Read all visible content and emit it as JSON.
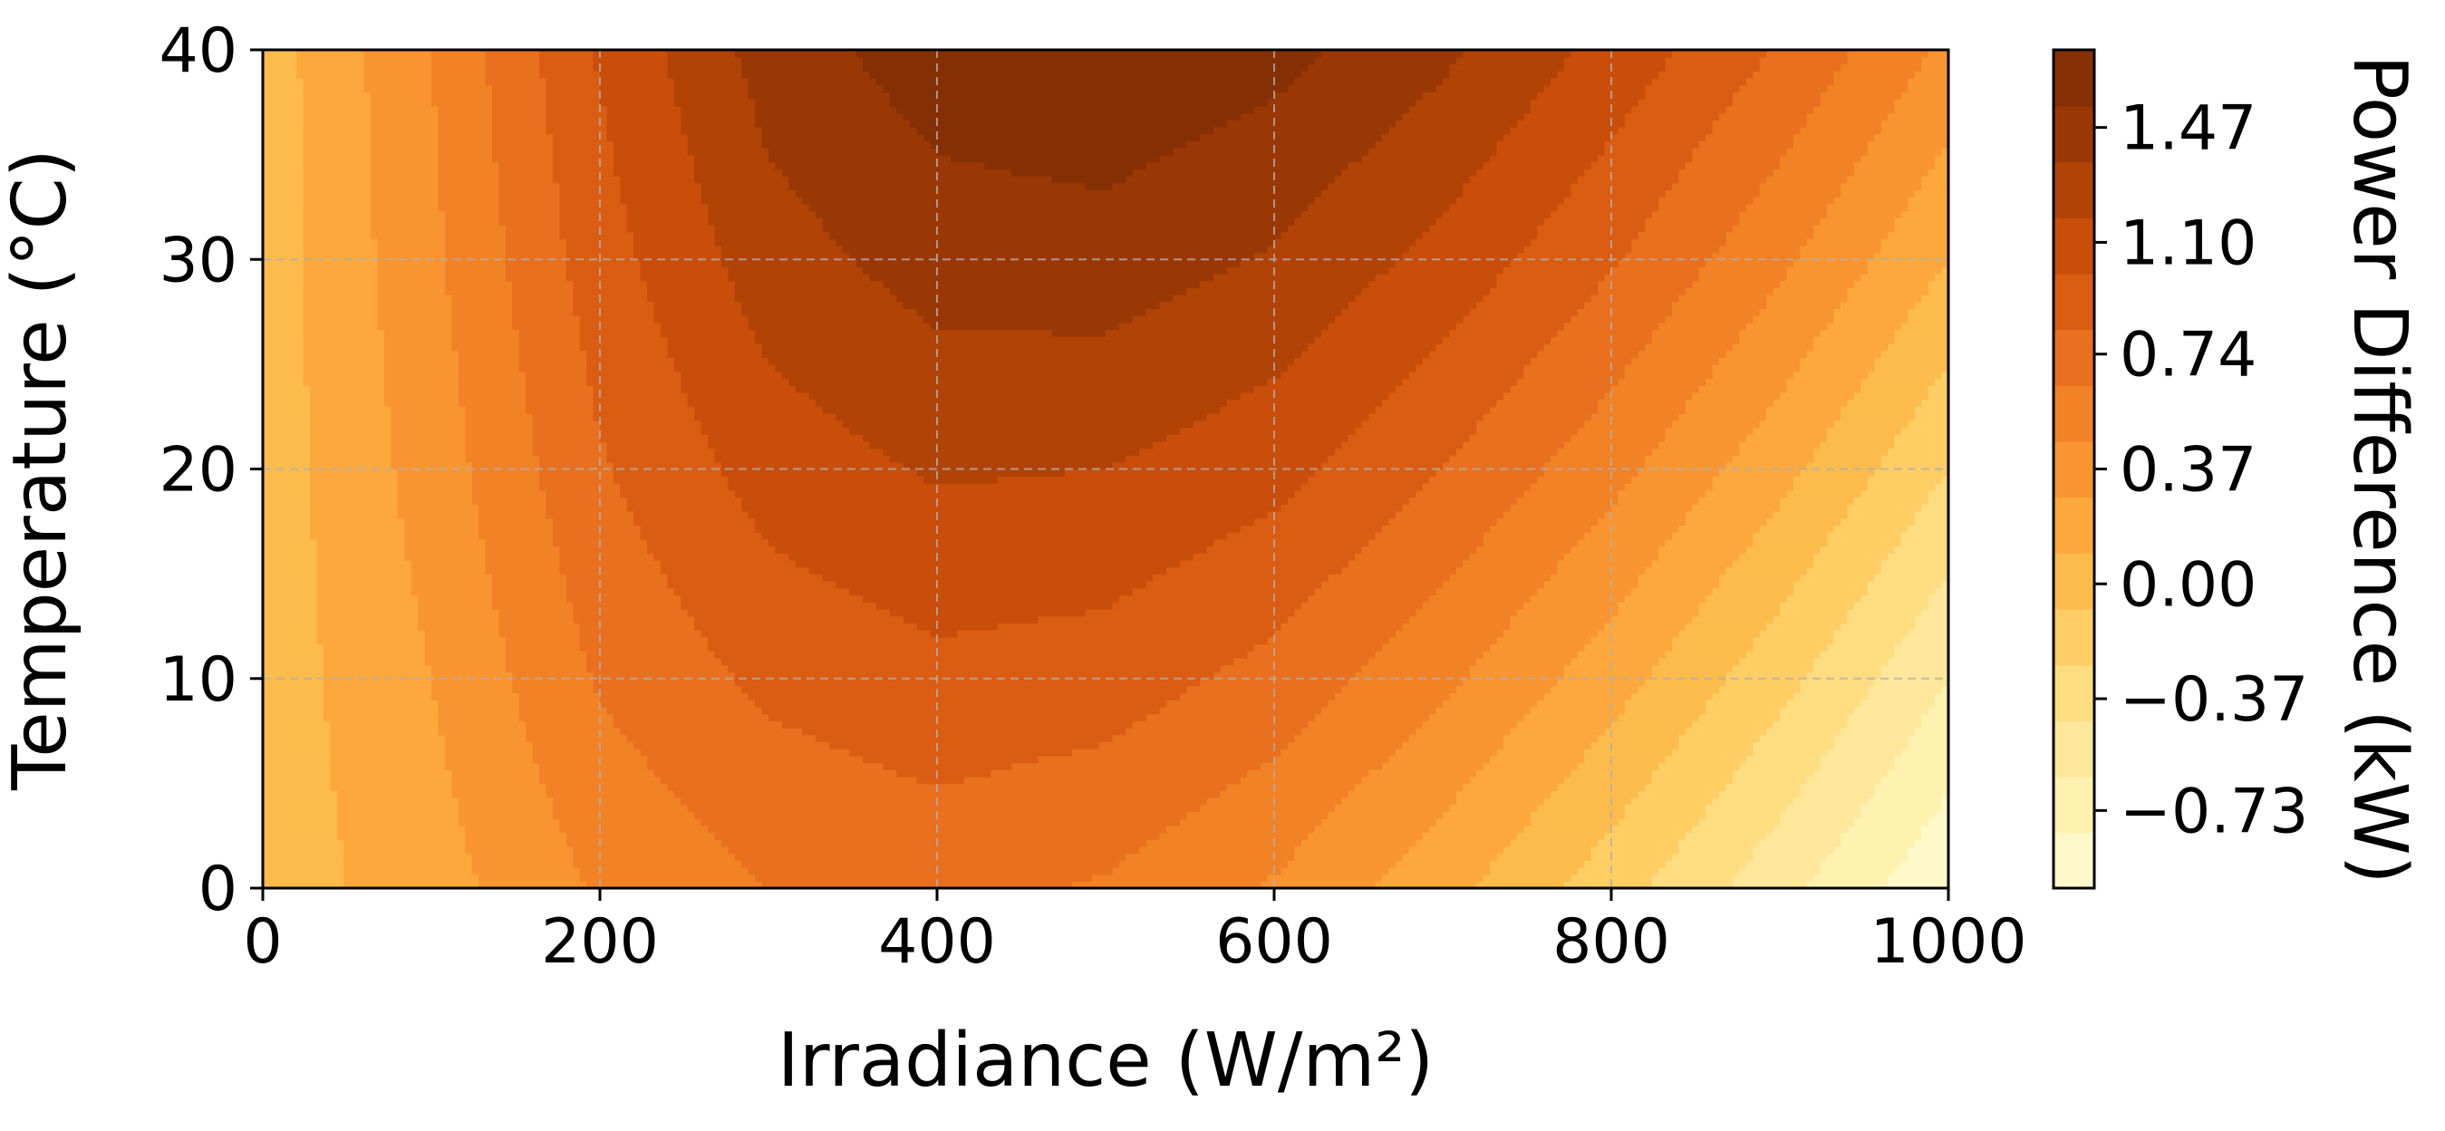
{
  "chart_data": {
    "type": "heatmap",
    "subtype": "filled-contour",
    "title": "",
    "xlabel": "Irradiance (W/m²)",
    "ylabel": "Temperature (°C)",
    "xlim": [
      0,
      1000
    ],
    "ylim": [
      0,
      40
    ],
    "x_ticks": [
      "0",
      "200",
      "400",
      "600",
      "800",
      "1000"
    ],
    "x_tick_values": [
      0,
      200,
      400,
      600,
      800,
      1000
    ],
    "y_ticks": [
      "0",
      "10",
      "20",
      "30",
      "40"
    ],
    "y_tick_values": [
      0,
      10,
      20,
      30,
      40
    ],
    "grid": true,
    "grid_style": "dashed",
    "colormap": "YlOrBr",
    "colorbar": {
      "label": "Power Difference (kW)",
      "tick_labels": [
        "−0.73",
        "−0.37",
        "0.00",
        "0.37",
        "0.74",
        "1.10",
        "1.47"
      ],
      "tick_values": [
        -0.73,
        -0.37,
        0.0,
        0.37,
        0.74,
        1.1,
        1.47
      ],
      "range": [
        -0.98,
        1.72
      ]
    },
    "levels": [
      -0.98,
      -0.8,
      -0.62,
      -0.44,
      -0.26,
      -0.08,
      0.1,
      0.28,
      0.46,
      0.64,
      0.82,
      1.0,
      1.18,
      1.36,
      1.54,
      1.72
    ],
    "level_colors": [
      "#fff8c8",
      "#fff1b0",
      "#fee79a",
      "#fedc80",
      "#fecd64",
      "#fdbb4c",
      "#fca83c",
      "#f99530",
      "#f28226",
      "#e8701e",
      "#da5d12",
      "#c94e0a",
      "#b14306",
      "#9a3805",
      "#852f04",
      "#722604"
    ],
    "model": {
      "description": "Power difference P(G,T) read from contours",
      "z_grid_x": [
        0,
        100,
        200,
        300,
        400,
        500,
        600,
        700,
        800,
        900,
        1000
      ],
      "z_grid_y": [
        0,
        10,
        20,
        30,
        40
      ],
      "z_values": [
        [
          0.0,
          0.2,
          0.48,
          0.64,
          0.7,
          0.62,
          0.44,
          0.16,
          -0.18,
          -0.56,
          -0.95
        ],
        [
          0.0,
          0.28,
          0.66,
          0.86,
          0.95,
          0.91,
          0.76,
          0.5,
          0.18,
          -0.2,
          -0.62
        ],
        [
          0.0,
          0.36,
          0.8,
          1.08,
          1.2,
          1.18,
          1.06,
          0.82,
          0.52,
          0.16,
          -0.26
        ],
        [
          0.0,
          0.42,
          0.92,
          1.28,
          1.44,
          1.46,
          1.34,
          1.12,
          0.84,
          0.5,
          0.1
        ],
        [
          0.0,
          0.46,
          1.02,
          1.44,
          1.64,
          1.7,
          1.6,
          1.4,
          1.12,
          0.8,
          0.42
        ]
      ]
    }
  }
}
